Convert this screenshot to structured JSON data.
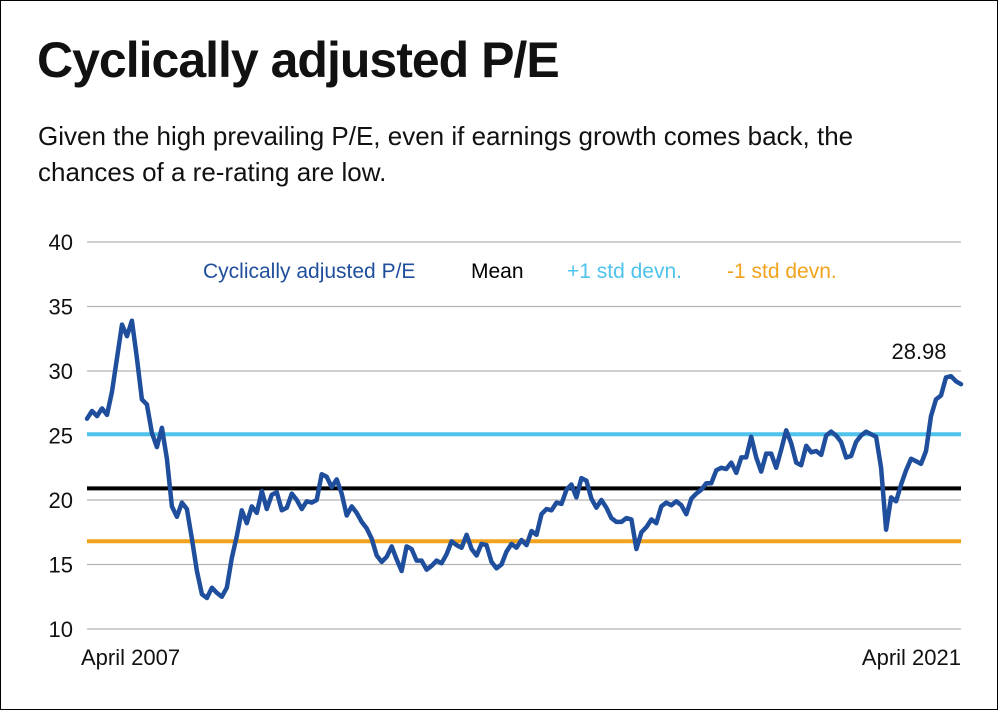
{
  "title": "Cyclically adjusted P/E",
  "subtitle": "Given the high prevailing P/E, even if earnings growth comes back, the chances of a re-rating are low.",
  "colors": {
    "series": "#1f4e9c",
    "mean": "#000000",
    "plus_std": "#4fc3ec",
    "minus_std": "#f2a31d",
    "grid": "#b3b3b3"
  },
  "chart_data": {
    "type": "line",
    "title": "Cyclically adjusted P/E",
    "xlabel": "",
    "ylabel": "",
    "ylim": [
      10,
      40
    ],
    "yticks": [
      10,
      15,
      20,
      25,
      30,
      35,
      40
    ],
    "grid": "horizontal",
    "legend_position": "top",
    "x_tick_labels": [
      "April 2007",
      "April 2021"
    ],
    "x_range": [
      "April 2007",
      "April 2021"
    ],
    "series": [
      {
        "name": "Cyclically adjusted P/E",
        "color": "#1f4e9c",
        "values": [
          26.3,
          26.9,
          26.5,
          27.1,
          26.6,
          28.4,
          31.0,
          33.6,
          32.7,
          33.9,
          31.0,
          27.8,
          27.4,
          25.2,
          24.1,
          25.6,
          23.2,
          19.5,
          18.7,
          19.8,
          19.3,
          17.0,
          14.5,
          12.7,
          12.4,
          13.2,
          12.8,
          12.5,
          13.2,
          15.5,
          17.2,
          19.2,
          18.2,
          19.5,
          19.0,
          20.7,
          19.3,
          20.4,
          20.6,
          19.2,
          19.4,
          20.5,
          20.0,
          19.3,
          19.9,
          19.8,
          20.0,
          22.0,
          21.8,
          21.0,
          21.6,
          20.5,
          18.8,
          19.5,
          19.0,
          18.3,
          17.8,
          17.0,
          15.7,
          15.2,
          15.6,
          16.4,
          15.4,
          14.5,
          16.4,
          16.2,
          15.3,
          15.3,
          14.6,
          14.9,
          15.3,
          15.1,
          15.8,
          16.8,
          16.5,
          16.3,
          17.3,
          16.2,
          15.7,
          16.6,
          16.5,
          15.2,
          14.7,
          15.0,
          16.0,
          16.6,
          16.3,
          16.9,
          16.5,
          17.6,
          17.3,
          18.9,
          19.3,
          19.2,
          19.8,
          19.7,
          20.8,
          21.2,
          20.2,
          21.7,
          21.5,
          20.1,
          19.4,
          20.0,
          19.4,
          18.6,
          18.3,
          18.3,
          18.6,
          18.5,
          16.2,
          17.5,
          17.9,
          18.5,
          18.2,
          19.5,
          19.8,
          19.6,
          19.9,
          19.6,
          18.9,
          20.1,
          20.5,
          20.8,
          21.3,
          21.3,
          22.3,
          22.5,
          22.4,
          22.9,
          22.1,
          23.3,
          23.3,
          24.9,
          23.3,
          22.2,
          23.6,
          23.6,
          22.5,
          23.9,
          25.4,
          24.4,
          22.9,
          22.7,
          24.2,
          23.7,
          23.8,
          23.5,
          25.0,
          25.3,
          25.0,
          24.5,
          23.3,
          23.4,
          24.5,
          25.0,
          25.3,
          25.1,
          24.9,
          22.5,
          17.7,
          20.2,
          19.9,
          21.2,
          22.3,
          23.2,
          23.0,
          22.8,
          23.8,
          26.5,
          27.8,
          28.1,
          29.5,
          29.6,
          29.2,
          28.98
        ]
      },
      {
        "name": "Mean",
        "color": "#000000",
        "value": 20.9
      },
      {
        "name": "+1 std devn.",
        "color": "#4fc3ec",
        "value": 25.1
      },
      {
        "name": "-1 std devn.",
        "color": "#f2a31d",
        "value": 16.8
      }
    ],
    "annotations": [
      {
        "text": "28.98",
        "value": 28.98
      }
    ]
  }
}
